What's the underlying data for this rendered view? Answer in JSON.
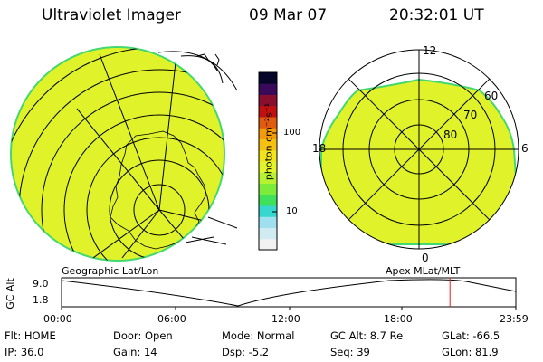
{
  "header": {
    "title": "Ultraviolet Imager",
    "date": "09 Mar 07",
    "time": "20:32:01 UT"
  },
  "colorbar": {
    "unit_label": "photon cm⁻²s⁻¹",
    "tick_100": "100",
    "tick_10": "10",
    "colors": [
      "#f2f2f2",
      "#d0ecf2",
      "#9ee0ee",
      "#36d7cf",
      "#3fe05a",
      "#7cec3a",
      "#b6f232",
      "#e2f42a",
      "#f2e41a",
      "#f5c010",
      "#f59a08",
      "#e05a10",
      "#c21010",
      "#8a0e2e",
      "#3a0a5a",
      "#06062a"
    ]
  },
  "left_map": {
    "caption": "Geographic Lat/Lon",
    "fill_color": "#dff22a",
    "edge_color": "#44d870"
  },
  "right_map": {
    "caption": "Apex  MLat/MLT",
    "mlt_12": "12",
    "mlt_18": "18",
    "mlt_6": "6",
    "mlt_0": "0",
    "lat_60": "60",
    "lat_70": "70",
    "lat_80": "80",
    "fill_color": "#dff22a",
    "edge_color": "#44d870"
  },
  "altitude_plot": {
    "y_label": "GC Alt",
    "y_max": "9.0",
    "y_min": "1.8",
    "x_ticks": [
      "00:00",
      "06:00",
      "12:00",
      "18:00",
      "23:59"
    ],
    "current_time_fraction": 0.855,
    "marker_color": "#e02020"
  },
  "status": {
    "flt": "Flt: HOME",
    "ip": "IP: 36.0",
    "door": "Door: Open",
    "gain": "Gain: 14",
    "mode": "Mode: Normal",
    "dsp": "Dsp:   -5.2",
    "gc_alt": "GC Alt: 8.7 Re",
    "seq": "Seq: 39",
    "glat": "GLat:  -66.5",
    "glon": "GLon:  81.9"
  }
}
